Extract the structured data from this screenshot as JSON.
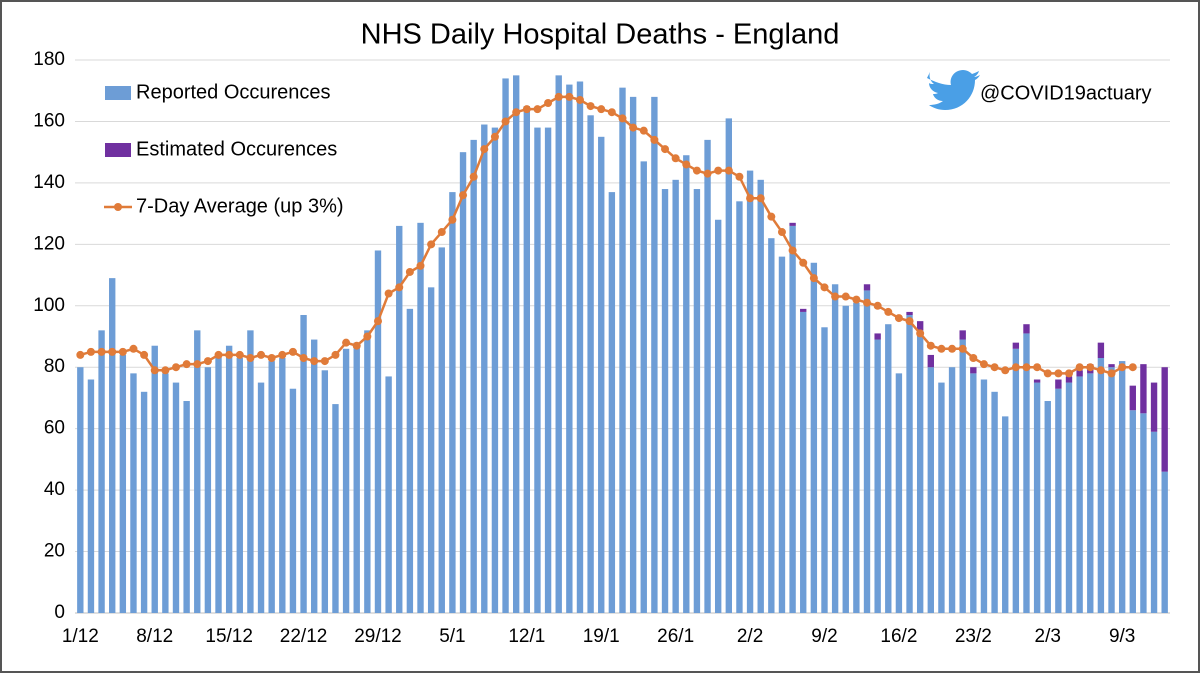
{
  "chart_data": {
    "type": "bar",
    "title": "NHS Daily Hospital Deaths - England",
    "annotation": "@COVID19actuary",
    "categories": [
      "1/12",
      null,
      null,
      null,
      null,
      null,
      null,
      "8/12",
      null,
      null,
      null,
      null,
      null,
      null,
      "15/12",
      null,
      null,
      null,
      null,
      null,
      null,
      "22/12",
      null,
      null,
      null,
      null,
      null,
      null,
      "29/12",
      null,
      null,
      null,
      null,
      null,
      null,
      "5/1",
      null,
      null,
      null,
      null,
      null,
      null,
      "12/1",
      null,
      null,
      null,
      null,
      null,
      null,
      "19/1",
      null,
      null,
      null,
      null,
      null,
      null,
      "26/1",
      null,
      null,
      null,
      null,
      null,
      null,
      "2/2",
      null,
      null,
      null,
      null,
      null,
      null,
      "9/2",
      null,
      null,
      null,
      null,
      null,
      null,
      "16/2",
      null,
      null,
      null,
      null,
      null,
      null,
      "23/2",
      null,
      null,
      null,
      null,
      null,
      null,
      "2/3",
      null,
      null,
      null,
      null,
      null,
      null,
      "9/3",
      null,
      null,
      null,
      null
    ],
    "series": [
      {
        "name": "Reported Occurences",
        "color": "#6d9dd6",
        "values": [
          80,
          76,
          92,
          109,
          84,
          78,
          72,
          87,
          78,
          75,
          69,
          92,
          80,
          84,
          87,
          83,
          92,
          75,
          82,
          83,
          73,
          97,
          89,
          79,
          68,
          86,
          88,
          92,
          118,
          77,
          126,
          99,
          127,
          106,
          119,
          137,
          150,
          154,
          159,
          158,
          174,
          175,
          165,
          158,
          158,
          175,
          172,
          173,
          162,
          155,
          137,
          171,
          168,
          147,
          168,
          138,
          141,
          149,
          138,
          154,
          128,
          161,
          134,
          144,
          141,
          122,
          116,
          126,
          98,
          114,
          93,
          107,
          100,
          101,
          105,
          89,
          94,
          78,
          97,
          92,
          80,
          75,
          80,
          89,
          78,
          76,
          72,
          64,
          86,
          91,
          75,
          69,
          73,
          75,
          77,
          78,
          83,
          80,
          82,
          66,
          65,
          59,
          46
        ]
      },
      {
        "name": "Estimated Occurences",
        "color": "#7030a0",
        "values": [
          0,
          0,
          0,
          0,
          0,
          0,
          0,
          0,
          0,
          0,
          0,
          0,
          0,
          0,
          0,
          0,
          0,
          0,
          0,
          0,
          0,
          0,
          0,
          0,
          0,
          0,
          0,
          0,
          0,
          0,
          0,
          0,
          0,
          0,
          0,
          0,
          0,
          0,
          0,
          0,
          0,
          0,
          0,
          0,
          0,
          0,
          0,
          0,
          0,
          0,
          0,
          0,
          0,
          0,
          0,
          0,
          0,
          0,
          0,
          0,
          0,
          0,
          0,
          0,
          0,
          0,
          0,
          1,
          1,
          0,
          0,
          0,
          0,
          0,
          2,
          2,
          0,
          0,
          1,
          3,
          4,
          0,
          0,
          3,
          2,
          0,
          0,
          0,
          2,
          3,
          1,
          0,
          3,
          2,
          2,
          3,
          5,
          1,
          0,
          8,
          16,
          16,
          34
        ]
      },
      {
        "name": "7-Day Average (up 3%)",
        "type": "line",
        "color": "#e07b39",
        "values": [
          84,
          85,
          85,
          85,
          85,
          86,
          84,
          79,
          79,
          80,
          81,
          81,
          82,
          84,
          84,
          84,
          83,
          84,
          83,
          84,
          85,
          83,
          82,
          82,
          84,
          88,
          87,
          90,
          95,
          104,
          106,
          111,
          113,
          120,
          124,
          128,
          136,
          142,
          151,
          155,
          160,
          163,
          164,
          164,
          166,
          168,
          168,
          167,
          165,
          164,
          163,
          161,
          158,
          157,
          154,
          151,
          148,
          146,
          144,
          143,
          144,
          144,
          142,
          135,
          135,
          129,
          124,
          118,
          114,
          109,
          106,
          103,
          103,
          102,
          101,
          100,
          98,
          96,
          95,
          91,
          87,
          86,
          86,
          86,
          83,
          81,
          80,
          79,
          80,
          80,
          80,
          78,
          78,
          78,
          80,
          80,
          79,
          78,
          80,
          80,
          null,
          null,
          null
        ]
      }
    ],
    "ylim": [
      0,
      180
    ],
    "yticks": [
      0,
      20,
      40,
      60,
      80,
      100,
      120,
      140,
      160,
      180
    ],
    "grid": true,
    "stacked": true
  }
}
